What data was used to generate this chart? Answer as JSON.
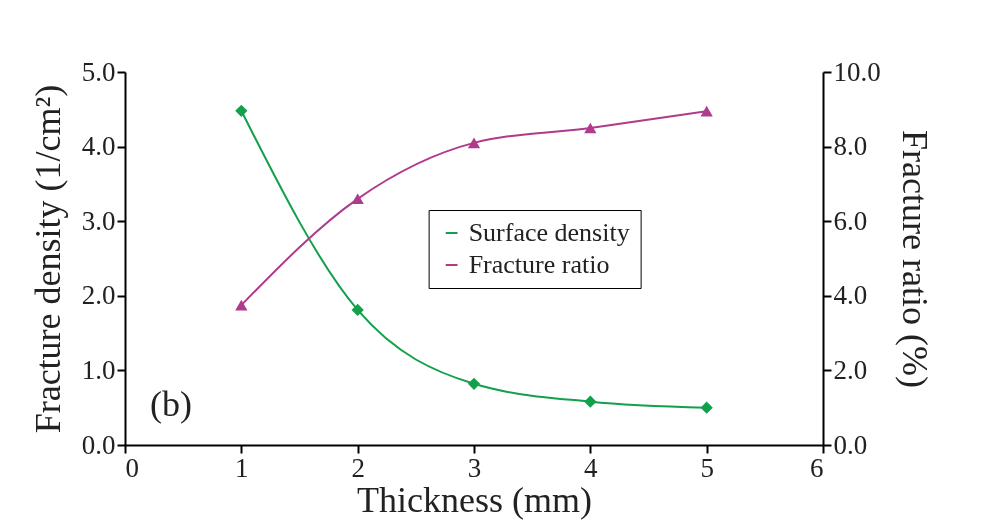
{
  "chart_data": {
    "type": "line",
    "xlabel": "Thickness (mm)",
    "ylabel": "Fracture density (1/cm²)",
    "y2label": "Fracture ratio (%)",
    "x": [
      1,
      2,
      3,
      4,
      5
    ],
    "xlim": [
      0,
      6
    ],
    "xticks": [
      0,
      1,
      2,
      3,
      4,
      5,
      6
    ],
    "ylim": [
      0,
      5
    ],
    "yticks": [
      {
        "value": 0,
        "label": "0.0"
      },
      {
        "value": 1,
        "label": "1.0"
      },
      {
        "value": 2,
        "label": "2.0"
      },
      {
        "value": 3,
        "label": "3.0"
      },
      {
        "value": 4,
        "label": "4.0"
      },
      {
        "value": 5,
        "label": "5.0"
      }
    ],
    "y2lim": [
      0,
      10
    ],
    "y2ticks": [
      {
        "value": 0,
        "label": "0.0"
      },
      {
        "value": 2,
        "label": "2.0"
      },
      {
        "value": 4,
        "label": "4.0"
      },
      {
        "value": 6,
        "label": "6.0"
      },
      {
        "value": 8,
        "label": "8.0"
      },
      {
        "value": 10,
        "label": "10.0"
      }
    ],
    "series": [
      {
        "name": "Surface density",
        "color": "#12a04a",
        "marker": "diamond",
        "values": [
          4.48,
          1.81,
          0.82,
          0.58,
          0.5
        ]
      },
      {
        "name": "Fracture ratio",
        "color": "#b03a8c",
        "marker": "triangle",
        "axis": "y2",
        "values": [
          3.75,
          6.6,
          8.1,
          8.5,
          8.95
        ]
      }
    ],
    "annotations": [
      "(b)"
    ],
    "legend": "right",
    "grid": false
  }
}
